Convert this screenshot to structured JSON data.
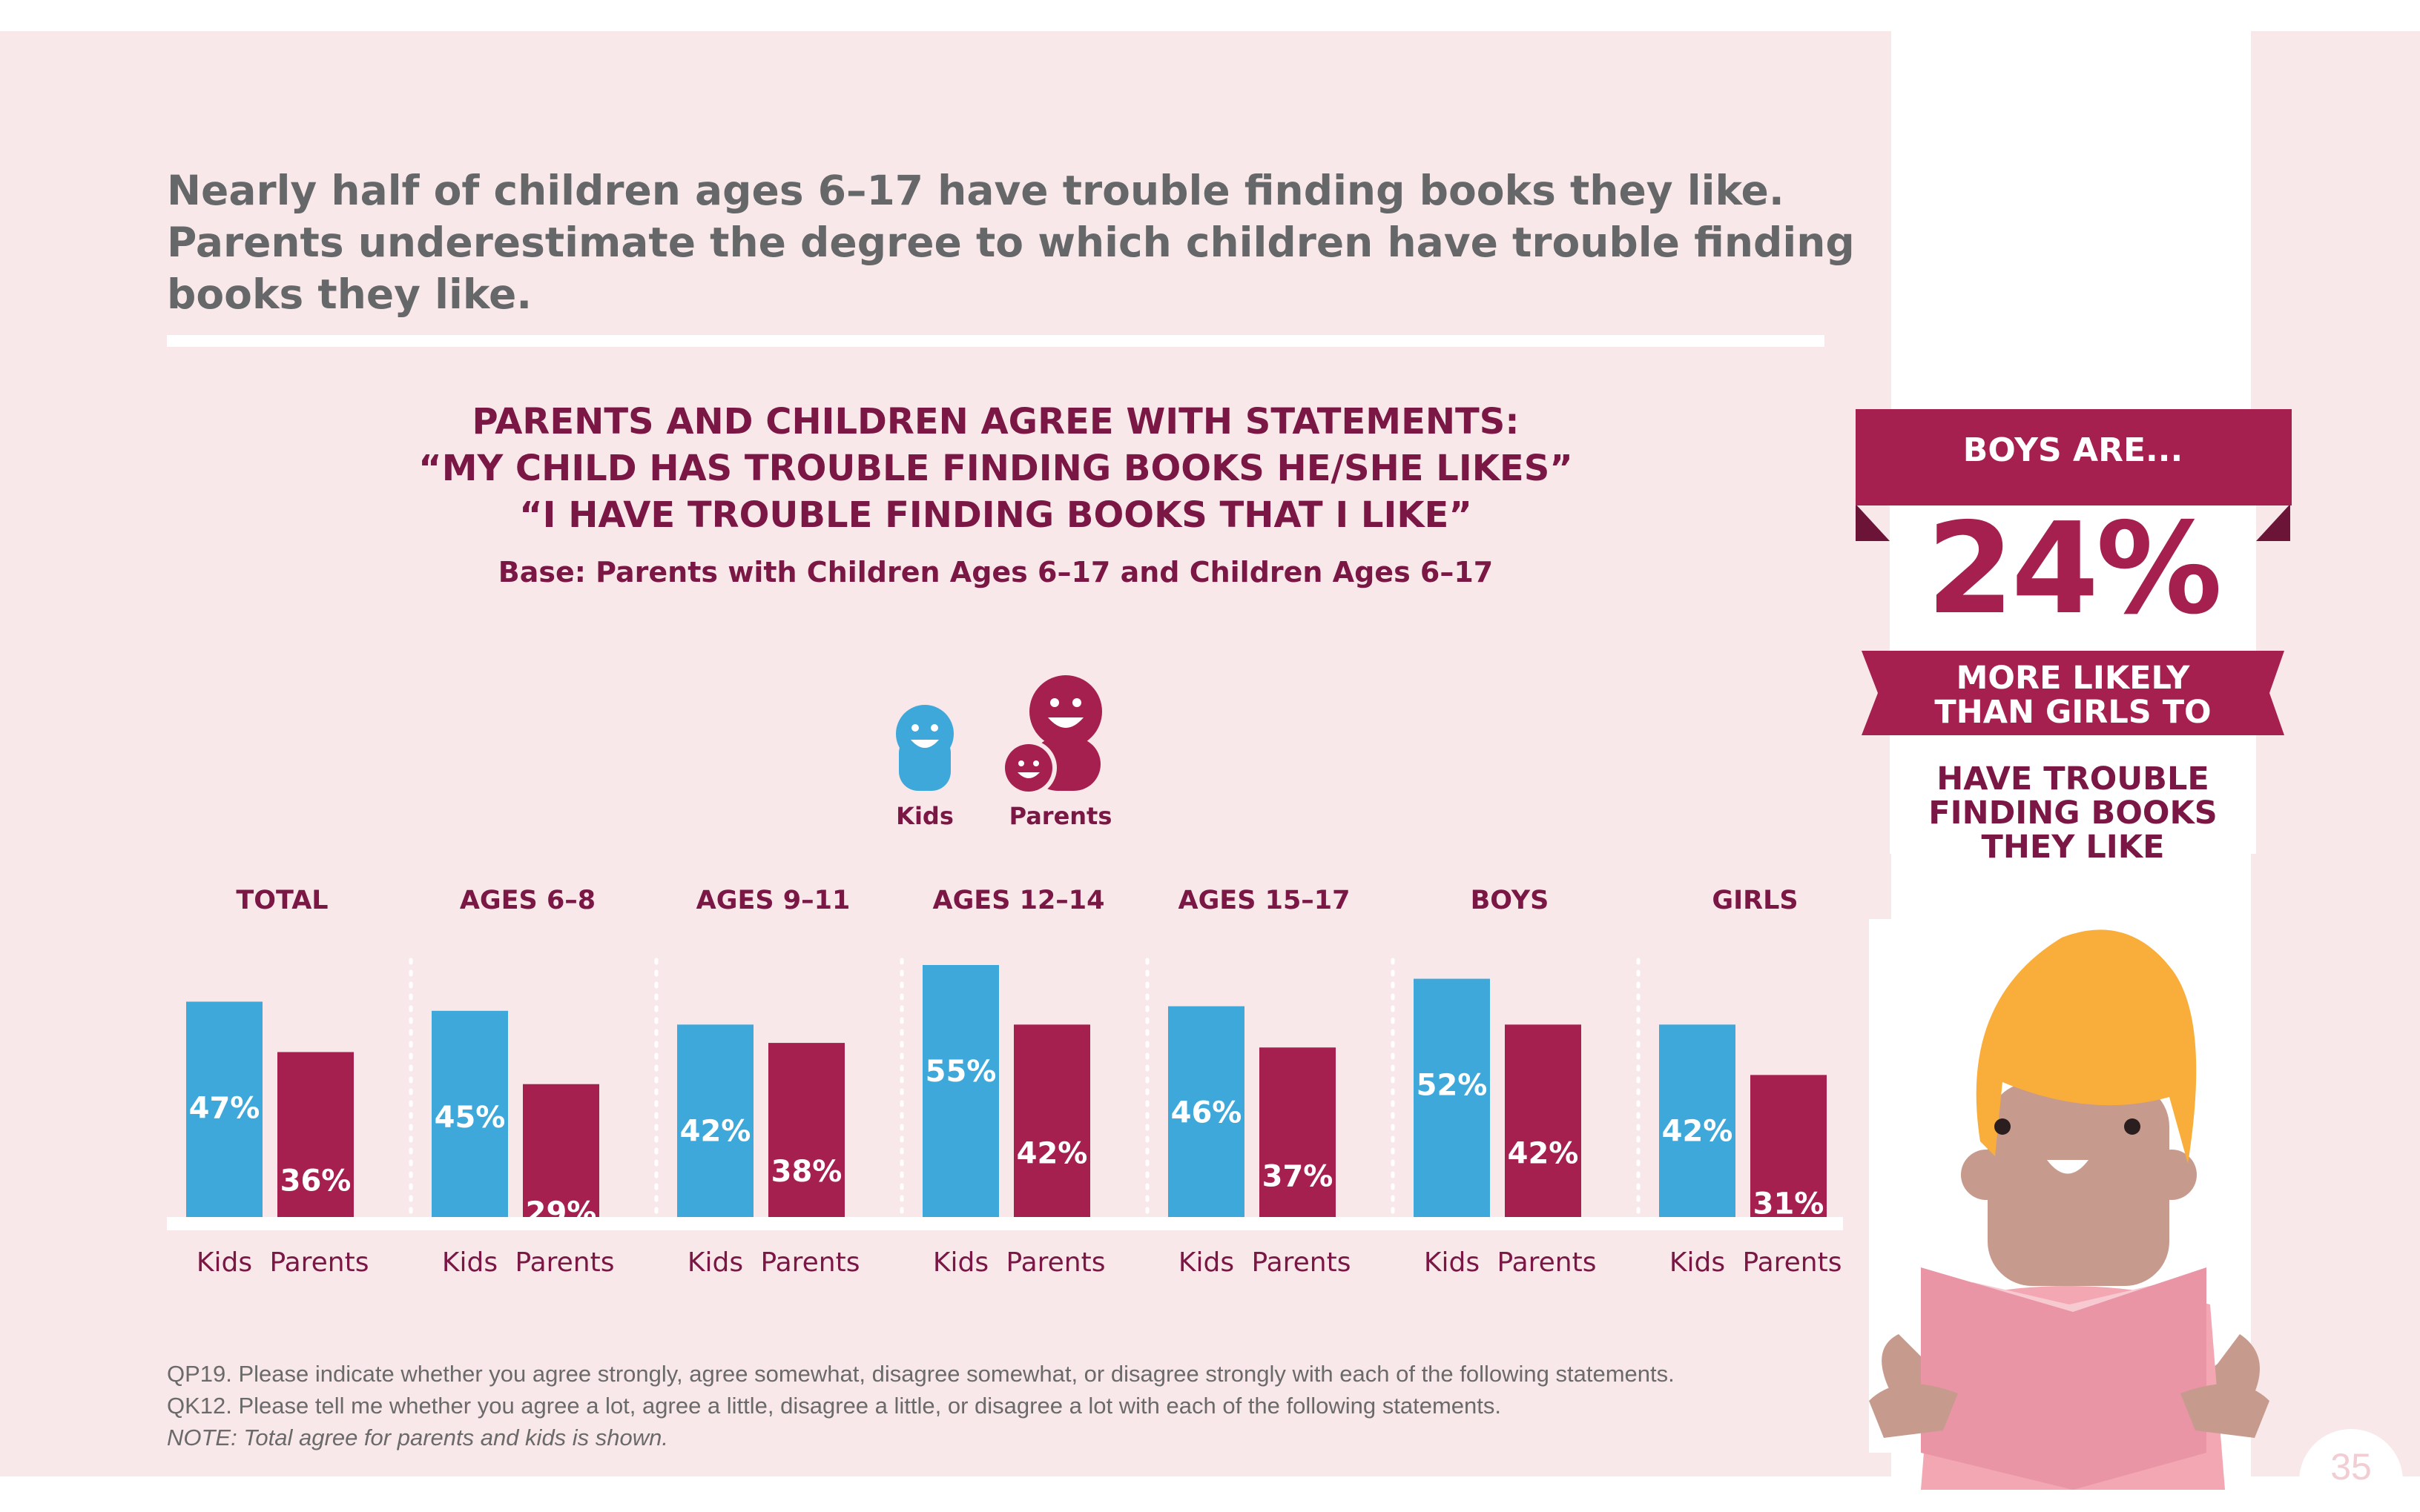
{
  "headline": "Nearly half of children ages 6–17 have trouble finding books they like. Parents underestimate the degree to which children have trouble finding books they like.",
  "colors": {
    "kids": "#3da8d9",
    "parents": "#a6204f",
    "panel": "#f9e8ea",
    "title": "#7a1744"
  },
  "legend": [
    {
      "label": "Kids",
      "icon": "kid-face-icon"
    },
    {
      "label": "Parents",
      "icon": "parent-and-child-icon"
    }
  ],
  "chart_data": {
    "type": "bar",
    "title": "PARENTS AND CHILDREN AGREE WITH STATEMENTS:\n“MY CHILD HAS TROUBLE FINDING BOOKS HE/SHE LIKES”\n“I HAVE TROUBLE FINDING BOOKS THAT I LIKE”",
    "subtitle": "Base: Parents with Children Ages 6–17 and Children Ages 6–17",
    "xlabel": "",
    "ylabel": "",
    "ylim": [
      0,
      60
    ],
    "grid": false,
    "legend_position": "top-center",
    "groups": [
      "TOTAL",
      "AGES 6–8",
      "AGES 9–11",
      "AGES 12–14",
      "AGES 15–17",
      "BOYS",
      "GIRLS"
    ],
    "bar_labels": [
      "Kids",
      "Parents"
    ],
    "value_suffix": "%",
    "series": [
      {
        "name": "Kids",
        "values": [
          47,
          45,
          42,
          55,
          46,
          52,
          42
        ]
      },
      {
        "name": "Parents",
        "values": [
          36,
          29,
          38,
          42,
          37,
          42,
          31
        ]
      }
    ]
  },
  "callout": {
    "heading": "BOYS ARE...",
    "value": "24%",
    "line1": "MORE LIKELY\nTHAN GIRLS TO",
    "line2": "HAVE TROUBLE\nFINDING BOOKS\nTHEY LIKE"
  },
  "footnotes": [
    "QP19. Please indicate whether you agree strongly, agree somewhat, disagree somewhat, or disagree strongly with each of the following statements.",
    "QK12. Please tell me whether you agree a lot, agree a little, disagree a little, or disagree a lot with each of the following statements."
  ],
  "note": "NOTE: Total agree for parents and kids is shown.",
  "page_number": "35"
}
